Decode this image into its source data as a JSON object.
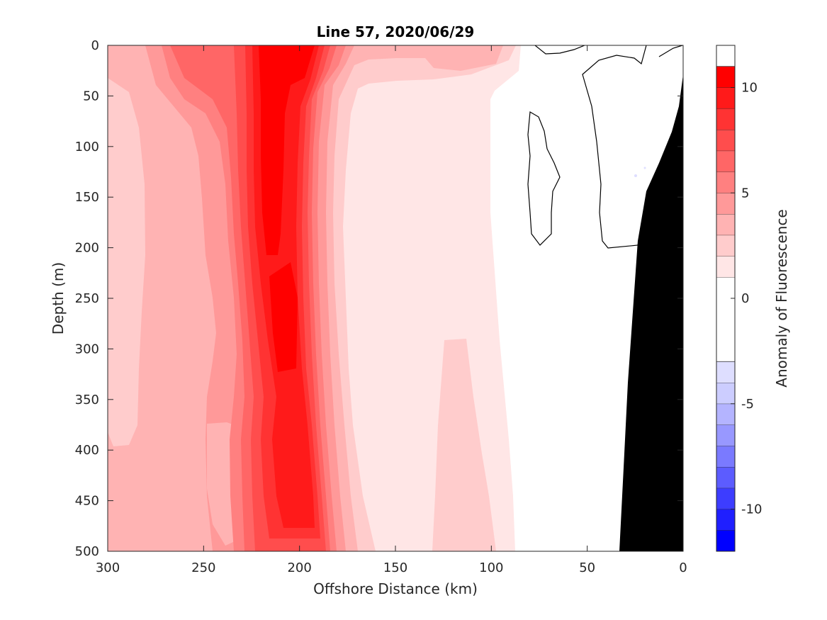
{
  "chart_data": {
    "type": "heatmap",
    "subtype": "filled-contour",
    "title": "Line 57, 2020/06/29",
    "xlabel": "Offshore Distance (km)",
    "ylabel": "Depth (m)",
    "xlim": [
      300,
      0
    ],
    "ylim": [
      0,
      500
    ],
    "x_reversed": true,
    "y_reversed": true,
    "x_ticks": [
      300,
      250,
      200,
      150,
      100,
      50,
      0
    ],
    "y_ticks": [
      0,
      50,
      100,
      150,
      200,
      250,
      300,
      350,
      400,
      450,
      500
    ],
    "x_tick_labels": [
      "300",
      "250",
      "200",
      "150",
      "100",
      "50",
      "0"
    ],
    "y_tick_labels": [
      "0",
      "50",
      "100",
      "150",
      "200",
      "250",
      "300",
      "350",
      "400",
      "450",
      "500"
    ],
    "colorbar": {
      "label": "Anomaly of Fluorescence",
      "range": [
        -12,
        12
      ],
      "ticks": [
        -10,
        -5,
        0,
        5,
        10
      ],
      "tick_labels": [
        "-10",
        "-5",
        "0",
        "5",
        "10"
      ],
      "levels": [
        -12,
        -11,
        -10,
        -9,
        -8,
        -7,
        -6,
        -5,
        -4,
        -3,
        -2,
        -1,
        1,
        2,
        3,
        4,
        5,
        6,
        7,
        8,
        9,
        10,
        11,
        12
      ],
      "colors": [
        "#0000ff",
        "#1f1fff",
        "#3d3dff",
        "#5c5cff",
        "#7a7aff",
        "#9898ff",
        "#b4b4ff",
        "#cccdff",
        "#dedeff",
        "#ffffff",
        "#ffe6e6",
        "#ffcccc",
        "#ffb3b3",
        "#ff9999",
        "#ff8080",
        "#ff6666",
        "#ff4d4d",
        "#ff3333",
        "#ff1a1a",
        "#ff0000"
      ]
    },
    "bathymetry_color": "#000000",
    "zero_contour_color": "#000000",
    "features": [
      {
        "name": "core",
        "description": "maximum near x=200-215 km through depth",
        "anomaly": 11
      },
      {
        "name": "near-shore",
        "description": "~0 anomaly for x < 90 km",
        "anomaly": 0
      },
      {
        "name": "offshore",
        "description": "2-4 anomaly for x > 230 km",
        "anomaly": 3
      }
    ]
  }
}
